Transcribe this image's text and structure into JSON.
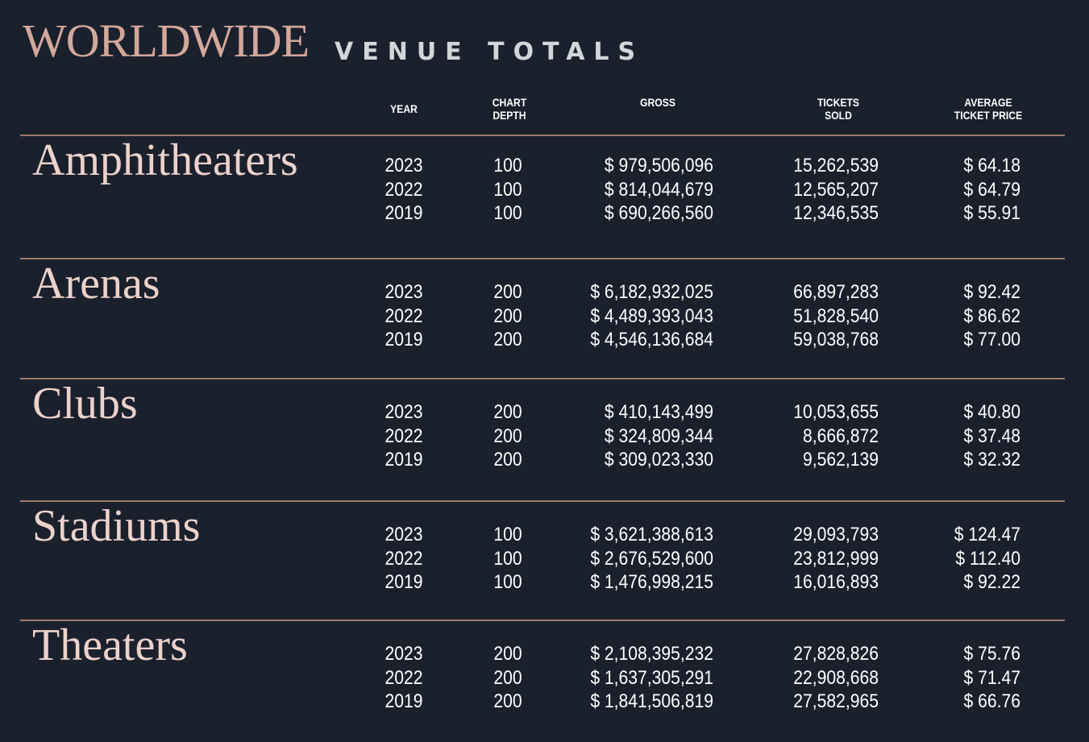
{
  "title": {
    "main": "WORLDWIDE",
    "sub": "VENUE TOTALS"
  },
  "headers": {
    "year": [
      "YEAR"
    ],
    "chart_depth": [
      "CHART",
      "DEPTH"
    ],
    "gross": [
      "GROSS"
    ],
    "tickets_sold": [
      "TICKETS",
      "SOLD"
    ],
    "avg_price": [
      "AVERAGE",
      "TICKET PRICE"
    ]
  },
  "sections": [
    {
      "name": "Amphitheaters",
      "rows": [
        {
          "year": "2023",
          "depth": "100",
          "gross": "$ 979,506,096",
          "tickets": "15,262,539",
          "avg": "$ 64.18"
        },
        {
          "year": "2022",
          "depth": "100",
          "gross": "$ 814,044,679",
          "tickets": "12,565,207",
          "avg": "$ 64.79"
        },
        {
          "year": "2019",
          "depth": "100",
          "gross": "$ 690,266,560",
          "tickets": "12,346,535",
          "avg": "$ 55.91"
        }
      ]
    },
    {
      "name": "Arenas",
      "rows": [
        {
          "year": "2023",
          "depth": "200",
          "gross": "$ 6,182,932,025",
          "tickets": "66,897,283",
          "avg": "$ 92.42"
        },
        {
          "year": "2022",
          "depth": "200",
          "gross": "$ 4,489,393,043",
          "tickets": "51,828,540",
          "avg": "$ 86.62"
        },
        {
          "year": "2019",
          "depth": "200",
          "gross": "$ 4,546,136,684",
          "tickets": "59,038,768",
          "avg": "$ 77.00"
        }
      ]
    },
    {
      "name": "Clubs",
      "rows": [
        {
          "year": "2023",
          "depth": "200",
          "gross": "$ 410,143,499",
          "tickets": "10,053,655",
          "avg": "$ 40.80"
        },
        {
          "year": "2022",
          "depth": "200",
          "gross": "$ 324,809,344",
          "tickets": "8,666,872",
          "avg": "$ 37.48"
        },
        {
          "year": "2019",
          "depth": "200",
          "gross": "$ 309,023,330",
          "tickets": "9,562,139",
          "avg": "$ 32.32"
        }
      ]
    },
    {
      "name": "Stadiums",
      "rows": [
        {
          "year": "2023",
          "depth": "100",
          "gross": "$ 3,621,388,613",
          "tickets": "29,093,793",
          "avg": "$ 124.47"
        },
        {
          "year": "2022",
          "depth": "100",
          "gross": "$ 2,676,529,600",
          "tickets": "23,812,999",
          "avg": "$ 112.40"
        },
        {
          "year": "2019",
          "depth": "100",
          "gross": "$ 1,476,998,215",
          "tickets": "16,016,893",
          "avg": "$ 92.22"
        }
      ]
    },
    {
      "name": "Theaters",
      "rows": [
        {
          "year": "2023",
          "depth": "200",
          "gross": "$ 2,108,395,232",
          "tickets": "27,828,826",
          "avg": "$ 75.76"
        },
        {
          "year": "2022",
          "depth": "200",
          "gross": "$ 1,637,305,291",
          "tickets": "22,908,668",
          "avg": "$ 71.47"
        },
        {
          "year": "2019",
          "depth": "200",
          "gross": "$ 1,841,506,819",
          "tickets": "27,582,965",
          "avg": "$ 66.76"
        }
      ]
    }
  ]
}
